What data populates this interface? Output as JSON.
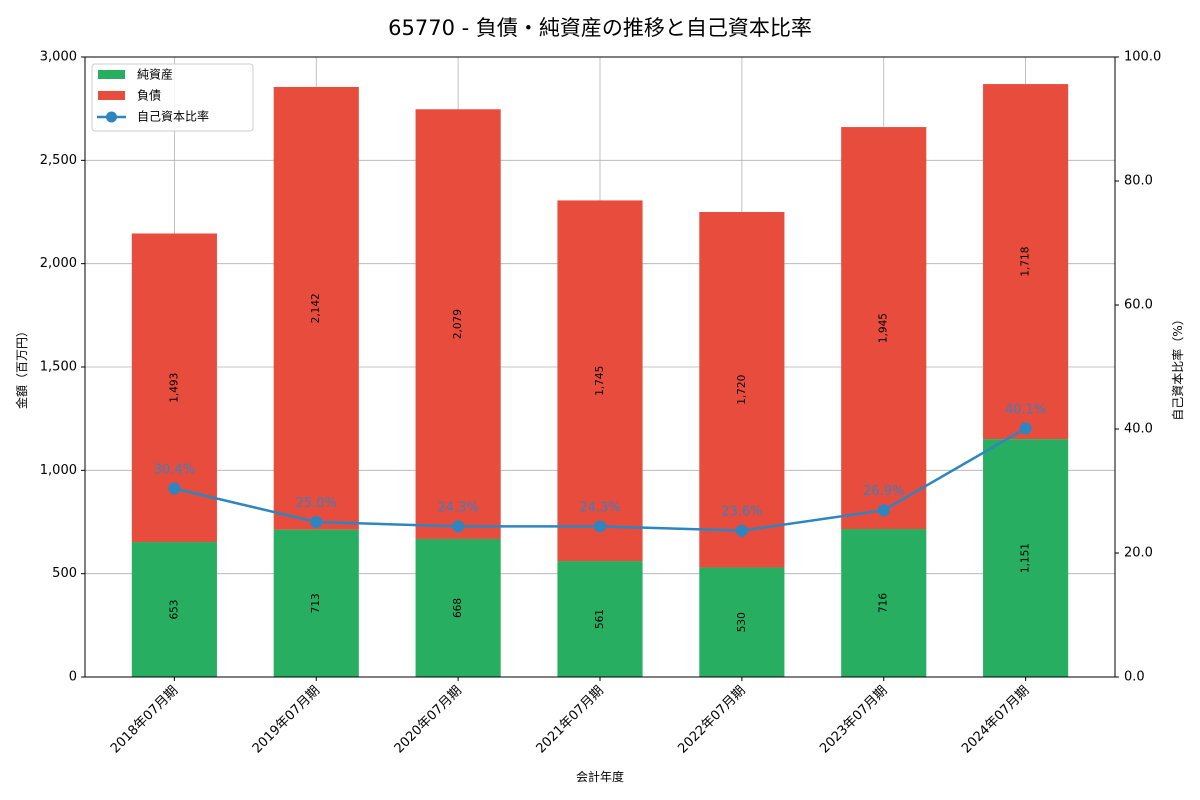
{
  "title": "65770 - 負債・純資産の推移と自己資本比率",
  "colors": {
    "net_assets": "#27ae60",
    "liabilities": "#e74c3c",
    "ratio_line": "#2e86c1",
    "ratio_label": "#3a80c0",
    "grid": "#b0b0b0"
  },
  "legend": {
    "items": [
      {
        "label": "純資産",
        "type": "bar",
        "color": "#27ae60"
      },
      {
        "label": "負債",
        "type": "bar",
        "color": "#e74c3c"
      },
      {
        "label": "自己資本比率",
        "type": "line-marker",
        "color": "#2e86c1"
      }
    ]
  },
  "axes": {
    "xlabel": "会計年度",
    "ylabel_left": "金額（百万円）",
    "ylabel_right": "自己資本比率（%）",
    "left_ticks": [
      "0",
      "500",
      "1,000",
      "1,500",
      "2,000",
      "2,500",
      "3,000"
    ],
    "right_ticks": [
      "0.0",
      "20.0",
      "40.0",
      "60.0",
      "80.0",
      "100.0"
    ]
  },
  "chart_data": {
    "type": "bar",
    "subtype": "stacked bar with secondary line",
    "title": "65770 - 負債・純資産の推移と自己資本比率",
    "xlabel": "会計年度",
    "ylabel": "金額（百万円）",
    "ylabel_right": "自己資本比率（%）",
    "ylim": [
      0,
      3000
    ],
    "ylim_right": [
      0,
      100
    ],
    "grid": true,
    "legend_position": "upper left",
    "categories": [
      "2018年07月期",
      "2019年07月期",
      "2020年07月期",
      "2021年07月期",
      "2022年07月期",
      "2023年07月期",
      "2024年07月期"
    ],
    "series": [
      {
        "name": "純資産",
        "type": "bar",
        "axis": "left",
        "values": [
          653,
          713,
          668,
          561,
          530,
          716,
          1151
        ],
        "labels": [
          "653",
          "713",
          "668",
          "561",
          "530",
          "716",
          "1,151"
        ]
      },
      {
        "name": "負債",
        "type": "bar",
        "axis": "left",
        "values": [
          1493,
          2142,
          2079,
          1745,
          1720,
          1945,
          1718
        ],
        "labels": [
          "1,493",
          "2,142",
          "2,079",
          "1,745",
          "1,720",
          "1,945",
          "1,718"
        ]
      },
      {
        "name": "自己資本比率",
        "type": "line",
        "axis": "right",
        "values": [
          30.4,
          25.0,
          24.3,
          24.3,
          23.6,
          26.9,
          40.1
        ],
        "labels": [
          "30.4%",
          "25.0%",
          "24.3%",
          "24.3%",
          "23.6%",
          "26.9%",
          "40.1%"
        ]
      }
    ]
  }
}
